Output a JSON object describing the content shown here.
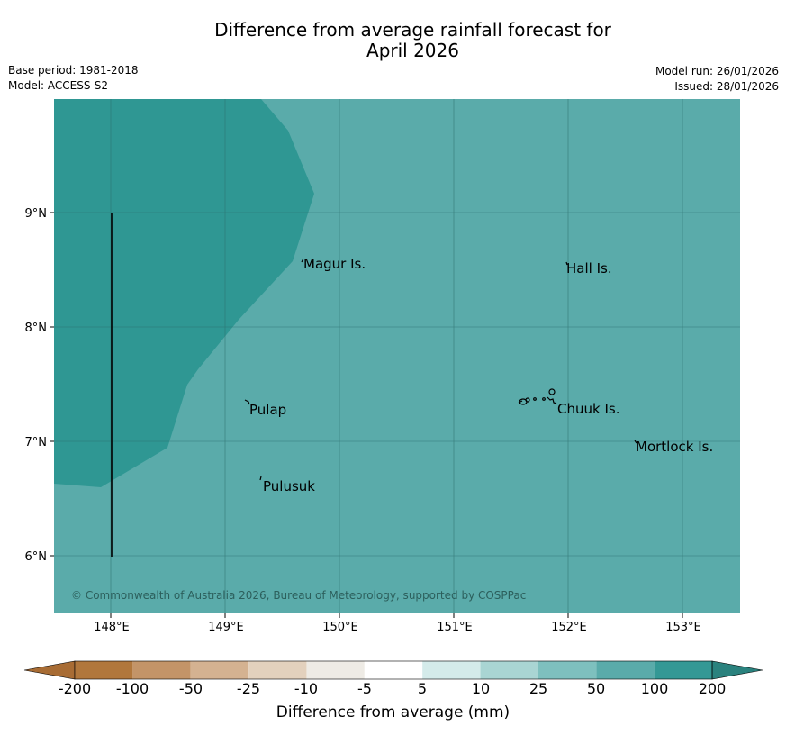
{
  "header": {
    "title_line1": "Difference from average rainfall forecast for",
    "title_line2": "April 2026",
    "base_period": "Base period: 1981-2018",
    "model": "Model: ACCESS-S2",
    "model_run": "Model run: 26/01/2026",
    "issued": "Issued: 28/01/2026"
  },
  "map": {
    "colors": {
      "background": "#5aabaa",
      "high": "#2f9793",
      "grid": "#2d6e6c"
    },
    "lon_ticks": [
      "148°E",
      "149°E",
      "150°E",
      "151°E",
      "152°E",
      "153°E"
    ],
    "lat_ticks": [
      "9°N",
      "8°N",
      "7°N",
      "6°N"
    ],
    "places": [
      "Magur Is.",
      "Hall Is.",
      "Pulap",
      "Chuuk Is.",
      "Mortlock Is.",
      "Pulusuk"
    ],
    "copyright": "© Commonwealth of Australia 2026, Bureau of Meteorology, supported by COSPPac"
  },
  "colorbar": {
    "title": "Difference from average (mm)",
    "labels": [
      "-200",
      "-100",
      "-50",
      "-25",
      "-10",
      "-5",
      "5",
      "10",
      "25",
      "50",
      "100",
      "200"
    ],
    "colors": [
      "#a86c34",
      "#b1773c",
      "#c39468",
      "#d4b291",
      "#e3d1bd",
      "#eeebe5",
      "#ffffff",
      "#d4ebea",
      "#a9d5d3",
      "#7ec0be",
      "#5aabaa",
      "#349895",
      "#2a827e"
    ]
  }
}
